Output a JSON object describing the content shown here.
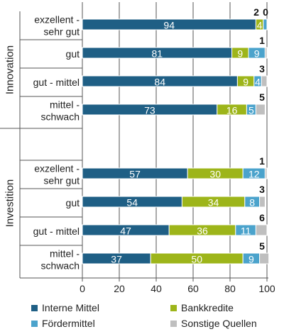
{
  "chart_data": {
    "type": "bar",
    "orientation": "horizontal",
    "stacked": true,
    "xlim": [
      0,
      100
    ],
    "x_ticks": [
      "0",
      "20",
      "40",
      "60",
      "80",
      "100"
    ],
    "grid": "vertical",
    "legend_position": "bottom",
    "groups": [
      {
        "name": "Innovation",
        "categories": [
          {
            "label": [
              "exzellent -",
              "sehr gut"
            ],
            "values": [
              94,
              4,
              2,
              0
            ],
            "labels": [
              "94",
              "4",
              "2",
              "0"
            ]
          },
          {
            "label": [
              "gut"
            ],
            "values": [
              81,
              9,
              9,
              1
            ],
            "labels": [
              "81",
              "9",
              "9",
              "1"
            ]
          },
          {
            "label": [
              "gut - mittel"
            ],
            "values": [
              84,
              9,
              4,
              3
            ],
            "labels": [
              "84",
              "9",
              "4",
              "3"
            ]
          },
          {
            "label": [
              "mittel -",
              "schwach"
            ],
            "values": [
              73,
              16,
              5,
              5
            ],
            "labels": [
              "73",
              "16",
              "5",
              "5"
            ]
          }
        ]
      },
      {
        "name": "Investition",
        "categories": [
          {
            "label": [
              "exzellent -",
              "sehr gut"
            ],
            "values": [
              57,
              30,
              12,
              1
            ],
            "labels": [
              "57",
              "30",
              "12",
              "1"
            ]
          },
          {
            "label": [
              "gut"
            ],
            "values": [
              54,
              34,
              8,
              3
            ],
            "labels": [
              "54",
              "34",
              "8",
              "3"
            ]
          },
          {
            "label": [
              "gut - mittel"
            ],
            "values": [
              47,
              36,
              11,
              6
            ],
            "labels": [
              "47",
              "36",
              "11",
              "6"
            ]
          },
          {
            "label": [
              "mittel -",
              "schwach"
            ],
            "values": [
              37,
              50,
              9,
              5
            ],
            "labels": [
              "37",
              "50",
              "9",
              "5"
            ]
          }
        ]
      }
    ],
    "series": [
      {
        "name": "Interne Mittel",
        "color": "#1f5f85"
      },
      {
        "name": "Bankkredite",
        "color": "#9db51a"
      },
      {
        "name": "Fördermittel",
        "color": "#4ba3cc"
      },
      {
        "name": "Sonstige Quellen",
        "color": "#bfbfbf"
      }
    ]
  }
}
